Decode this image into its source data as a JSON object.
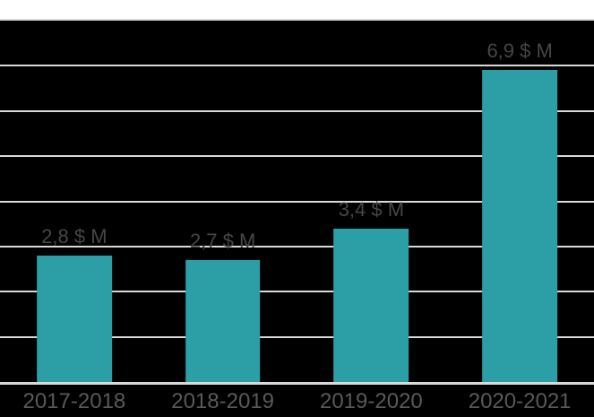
{
  "chart_data": {
    "type": "bar",
    "categories": [
      "2017-2018",
      "2018-2019",
      "2019-2020",
      "2020-2021"
    ],
    "values": [
      2.8,
      2.7,
      3.4,
      6.9
    ],
    "value_labels": [
      "2,8 $ M",
      "2,7 $ M",
      "3,4 $ M",
      "6,9 $ M"
    ],
    "unit": "$ M",
    "title": "",
    "xlabel": "",
    "ylabel": "",
    "ylim": [
      0,
      8
    ],
    "gridline_step": 1,
    "grid": true,
    "legend": false
  },
  "style": {
    "bar_color": "#2b9ea6",
    "plot_background": "#000000",
    "gridline_color": "#d9d9d9",
    "axis_line_color": "#d9d9d9",
    "value_label_color": "#464646",
    "category_label_color": "#595959",
    "top_band_color": "#ffffff",
    "bottom_band_color": "#000000"
  }
}
